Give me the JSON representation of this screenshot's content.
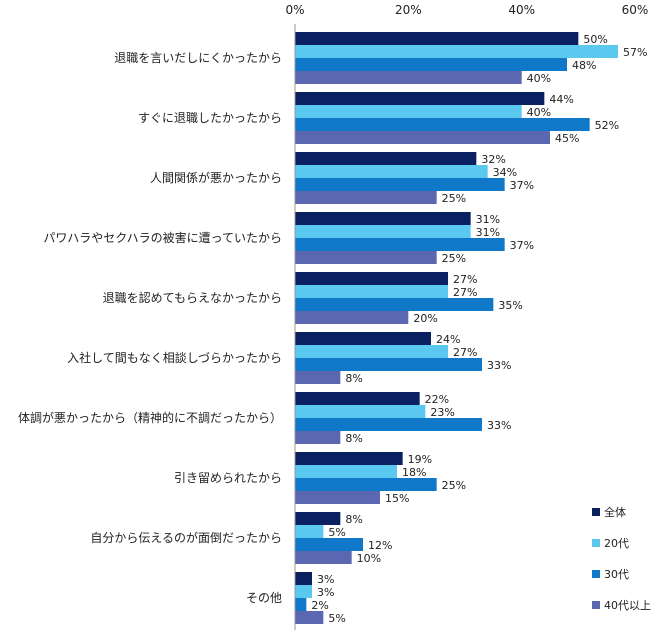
{
  "chart_data": {
    "type": "bar",
    "orientation": "horizontal",
    "title": "",
    "xlabel": "",
    "ylabel": "",
    "xlim": [
      0,
      60
    ],
    "xticks": [
      0,
      20,
      40,
      60
    ],
    "tick_labels": [
      "0%",
      "20%",
      "40%",
      "60%"
    ],
    "unit_suffix": "%",
    "grid": false,
    "legend_position": "right-bottom",
    "categories": [
      "退職を言いだしにくかったから",
      "すぐに退職したかったから",
      "人間関係が悪かったから",
      "パワハラやセクハラの被害に遭っていたから",
      "退職を認めてもらえなかったから",
      "入社して間もなく相談しづらかったから",
      "体調が悪かったから（精神的に不調だったから）",
      "引き留められたから",
      "自分から伝えるのが面倒だったから",
      "その他"
    ],
    "series": [
      {
        "name": "全体",
        "color": "#0a2060",
        "values": [
          50,
          44,
          32,
          31,
          27,
          24,
          22,
          19,
          8,
          3
        ]
      },
      {
        "name": "20代",
        "color": "#5bc8f0",
        "values": [
          57,
          40,
          34,
          31,
          27,
          27,
          23,
          18,
          5,
          3
        ]
      },
      {
        "name": "30代",
        "color": "#0f78c8",
        "values": [
          48,
          52,
          37,
          37,
          35,
          33,
          33,
          25,
          12,
          2
        ]
      },
      {
        "name": "40代以上",
        "color": "#5b67b0",
        "values": [
          40,
          45,
          25,
          25,
          20,
          8,
          8,
          15,
          10,
          5
        ]
      }
    ]
  }
}
